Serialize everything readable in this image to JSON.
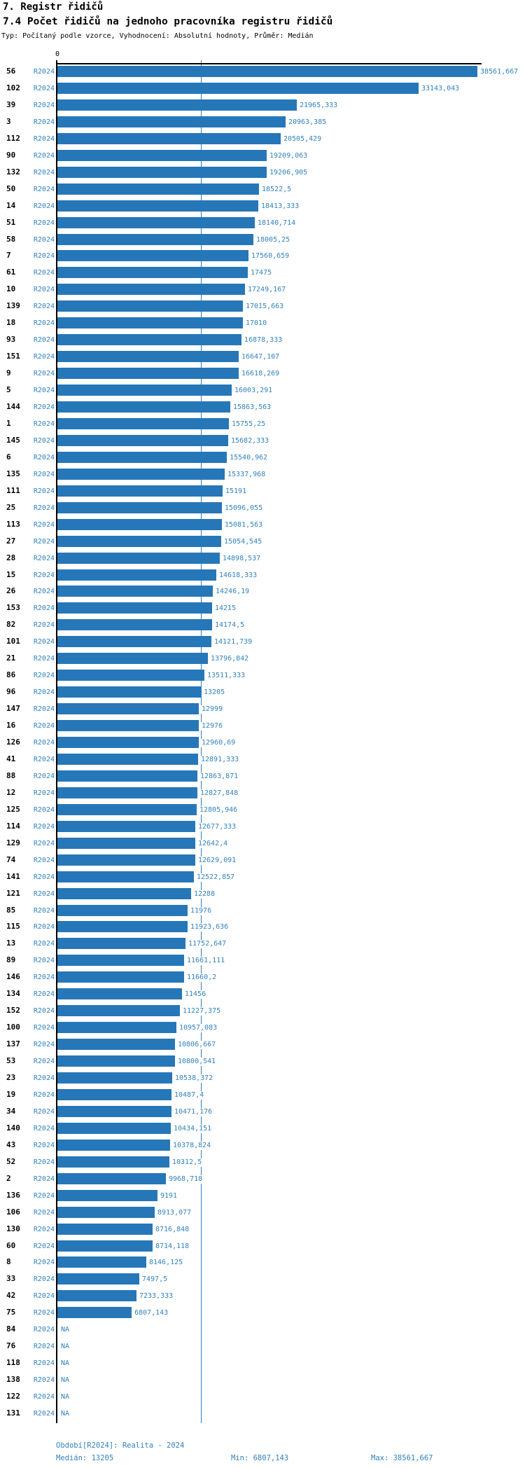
{
  "header": {
    "title": "7. Registr řidičů",
    "subtitle": "7.4 Počet řidičů na jednoho pracovníka registru řidičů",
    "meta": "Typ: Počítaný podle vzorce, Vyhodnocení: Absolutní hodnoty, Průměr: Medián"
  },
  "axis": {
    "zero_label": "0"
  },
  "colors": {
    "bar": "#2677b8",
    "label_blue": "#3182bd",
    "median_line": "#2e7fbc",
    "axis": "#000000"
  },
  "footer": {
    "period": "Období[R2024]: Realita - 2024",
    "median": "Medián: 13205",
    "min": "Min: 6807,143",
    "max": "Max: 38561,667"
  },
  "chart_data": {
    "type": "bar",
    "orientation": "horizontal",
    "series_label": "R2024",
    "na_label": "NA",
    "median": 13205,
    "xlim": [
      0,
      38561.667
    ],
    "max_value": 38561.667,
    "rows": [
      {
        "id": "56",
        "label": "38561,667",
        "value": 38561.667
      },
      {
        "id": "102",
        "label": "33143,043",
        "value": 33143.043
      },
      {
        "id": "39",
        "label": "21965,333",
        "value": 21965.333
      },
      {
        "id": "3",
        "label": "20963,385",
        "value": 20963.385
      },
      {
        "id": "112",
        "label": "20505,429",
        "value": 20505.429
      },
      {
        "id": "90",
        "label": "19209,063",
        "value": 19209.063
      },
      {
        "id": "132",
        "label": "19206,905",
        "value": 19206.905
      },
      {
        "id": "50",
        "label": "18522,5",
        "value": 18522.5
      },
      {
        "id": "14",
        "label": "18413,333",
        "value": 18413.333
      },
      {
        "id": "51",
        "label": "18140,714",
        "value": 18140.714
      },
      {
        "id": "58",
        "label": "18005,25",
        "value": 18005.25
      },
      {
        "id": "7",
        "label": "17560,659",
        "value": 17560.659
      },
      {
        "id": "61",
        "label": "17475",
        "value": 17475
      },
      {
        "id": "10",
        "label": "17249,167",
        "value": 17249.167
      },
      {
        "id": "139",
        "label": "17015,663",
        "value": 17015.663
      },
      {
        "id": "18",
        "label": "17010",
        "value": 17010
      },
      {
        "id": "93",
        "label": "16878,333",
        "value": 16878.333
      },
      {
        "id": "151",
        "label": "16647,107",
        "value": 16647.107
      },
      {
        "id": "9",
        "label": "16618,269",
        "value": 16618.269
      },
      {
        "id": "5",
        "label": "16003,291",
        "value": 16003.291
      },
      {
        "id": "144",
        "label": "15863,563",
        "value": 15863.563
      },
      {
        "id": "1",
        "label": "15755,25",
        "value": 15755.25
      },
      {
        "id": "145",
        "label": "15682,333",
        "value": 15682.333
      },
      {
        "id": "6",
        "label": "15540,962",
        "value": 15540.962
      },
      {
        "id": "135",
        "label": "15337,968",
        "value": 15337.968
      },
      {
        "id": "111",
        "label": "15191",
        "value": 15191
      },
      {
        "id": "25",
        "label": "15096,055",
        "value": 15096.055
      },
      {
        "id": "113",
        "label": "15081,563",
        "value": 15081.563
      },
      {
        "id": "27",
        "label": "15054,545",
        "value": 15054.545
      },
      {
        "id": "28",
        "label": "14898,537",
        "value": 14898.537
      },
      {
        "id": "15",
        "label": "14618,333",
        "value": 14618.333
      },
      {
        "id": "26",
        "label": "14246,19",
        "value": 14246.19
      },
      {
        "id": "153",
        "label": "14215",
        "value": 14215
      },
      {
        "id": "82",
        "label": "14174,5",
        "value": 14174.5
      },
      {
        "id": "101",
        "label": "14121,739",
        "value": 14121.739
      },
      {
        "id": "21",
        "label": "13796,842",
        "value": 13796.842
      },
      {
        "id": "86",
        "label": "13511,333",
        "value": 13511.333
      },
      {
        "id": "96",
        "label": "13205",
        "value": 13205
      },
      {
        "id": "147",
        "label": "12999",
        "value": 12999
      },
      {
        "id": "16",
        "label": "12976",
        "value": 12976
      },
      {
        "id": "126",
        "label": "12960,69",
        "value": 12960.69
      },
      {
        "id": "41",
        "label": "12891,333",
        "value": 12891.333
      },
      {
        "id": "88",
        "label": "12863,871",
        "value": 12863.871
      },
      {
        "id": "12",
        "label": "12827,848",
        "value": 12827.848
      },
      {
        "id": "125",
        "label": "12805,946",
        "value": 12805.946
      },
      {
        "id": "114",
        "label": "12677,333",
        "value": 12677.333
      },
      {
        "id": "129",
        "label": "12642,4",
        "value": 12642.4
      },
      {
        "id": "74",
        "label": "12629,091",
        "value": 12629.091
      },
      {
        "id": "141",
        "label": "12522,857",
        "value": 12522.857
      },
      {
        "id": "121",
        "label": "12288",
        "value": 12288
      },
      {
        "id": "85",
        "label": "11976",
        "value": 11976
      },
      {
        "id": "115",
        "label": "11923,636",
        "value": 11923.636
      },
      {
        "id": "13",
        "label": "11752,647",
        "value": 11752.647
      },
      {
        "id": "89",
        "label": "11661,111",
        "value": 11661.111
      },
      {
        "id": "146",
        "label": "11660,2",
        "value": 11660.2
      },
      {
        "id": "134",
        "label": "11456",
        "value": 11456
      },
      {
        "id": "152",
        "label": "11227,375",
        "value": 11227.375
      },
      {
        "id": "100",
        "label": "10957,083",
        "value": 10957.083
      },
      {
        "id": "137",
        "label": "10806,667",
        "value": 10806.667
      },
      {
        "id": "53",
        "label": "10800,541",
        "value": 10800.541
      },
      {
        "id": "23",
        "label": "10538,372",
        "value": 10538.372
      },
      {
        "id": "19",
        "label": "10487,4",
        "value": 10487.4
      },
      {
        "id": "34",
        "label": "10471,176",
        "value": 10471.176
      },
      {
        "id": "140",
        "label": "10434,151",
        "value": 10434.151
      },
      {
        "id": "43",
        "label": "10378,824",
        "value": 10378.824
      },
      {
        "id": "52",
        "label": "10312,5",
        "value": 10312.5
      },
      {
        "id": "2",
        "label": "9968,718",
        "value": 9968.718
      },
      {
        "id": "136",
        "label": "9191",
        "value": 9191
      },
      {
        "id": "106",
        "label": "8913,077",
        "value": 8913.077
      },
      {
        "id": "130",
        "label": "8716,848",
        "value": 8716.848
      },
      {
        "id": "60",
        "label": "8714,118",
        "value": 8714.118
      },
      {
        "id": "8",
        "label": "8146,125",
        "value": 8146.125
      },
      {
        "id": "33",
        "label": "7497,5",
        "value": 7497.5
      },
      {
        "id": "42",
        "label": "7233,333",
        "value": 7233.333
      },
      {
        "id": "75",
        "label": "6807,143",
        "value": 6807.143
      },
      {
        "id": "84",
        "label": "NA",
        "value": null
      },
      {
        "id": "76",
        "label": "NA",
        "value": null
      },
      {
        "id": "118",
        "label": "NA",
        "value": null
      },
      {
        "id": "138",
        "label": "NA",
        "value": null
      },
      {
        "id": "122",
        "label": "NA",
        "value": null
      },
      {
        "id": "131",
        "label": "NA",
        "value": null
      }
    ]
  }
}
